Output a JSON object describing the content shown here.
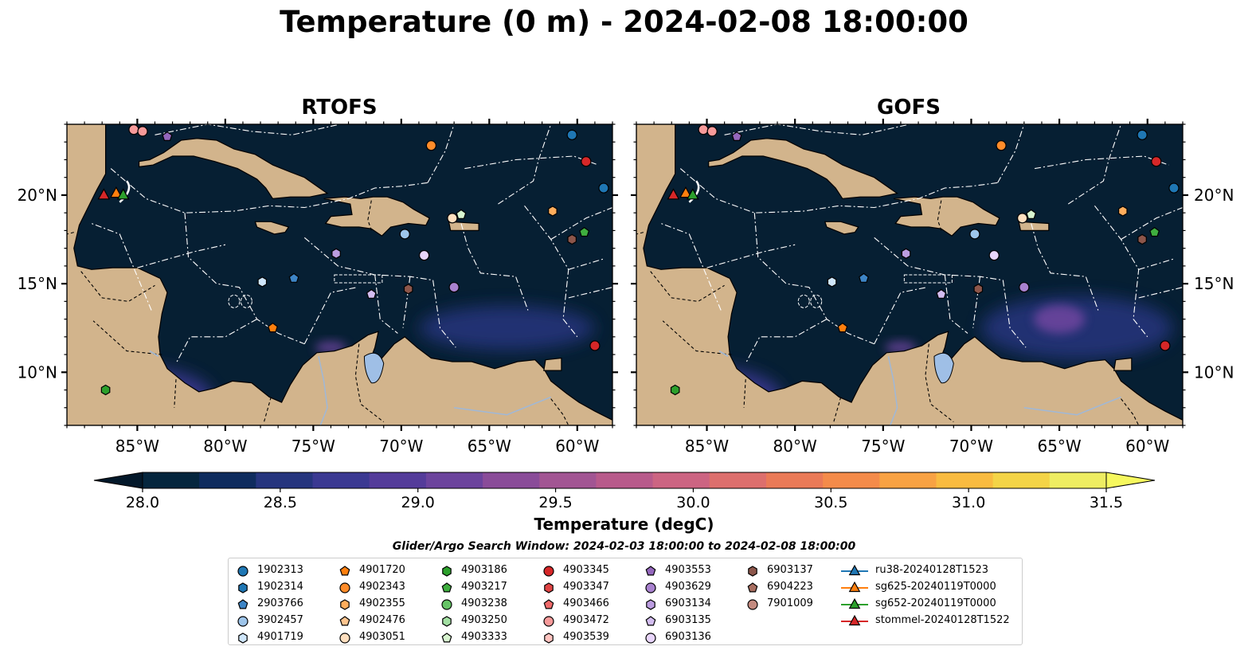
{
  "title": "Temperature (0 m) - 2024-02-08 18:00:00",
  "panels": [
    {
      "title": "RTOFS",
      "hotspot": "low"
    },
    {
      "title": "GOFS",
      "hotspot": "high"
    }
  ],
  "map": {
    "lon_range": [
      -89,
      -58
    ],
    "lat_range": [
      7,
      24
    ],
    "lon_ticks": [
      {
        "value": -85,
        "label": "85°W"
      },
      {
        "value": -80,
        "label": "80°W"
      },
      {
        "value": -75,
        "label": "75°W"
      },
      {
        "value": -70,
        "label": "70°W"
      },
      {
        "value": -65,
        "label": "65°W"
      },
      {
        "value": -60,
        "label": "60°W"
      }
    ],
    "lat_ticks": [
      {
        "value": 10,
        "label": "10°N"
      },
      {
        "value": 15,
        "label": "15°N"
      },
      {
        "value": 20,
        "label": "20°N"
      }
    ],
    "colors": {
      "ocean": "#061f33",
      "land": "#d2b48c",
      "lake": "#9fbfe6",
      "border": "#000000",
      "eez": "#ffffff"
    }
  },
  "colorbar": {
    "label": "Temperature (degC)",
    "min": 28.0,
    "max": 31.5,
    "ticks": [
      "28.0",
      "28.5",
      "29.0",
      "29.5",
      "30.0",
      "30.5",
      "31.0",
      "31.5"
    ],
    "colors": [
      "#05263e",
      "#0f2c5e",
      "#26357e",
      "#3b3992",
      "#543c9a",
      "#6c449d",
      "#8a4c99",
      "#a25593",
      "#b85a8b",
      "#cc6482",
      "#dd6f6d",
      "#ea7a57",
      "#f48b4a",
      "#f8a243",
      "#f9bb40",
      "#f4d447",
      "#eeed62"
    ],
    "extend_low_color": "#03182a",
    "extend_high_color": "#f6f85e"
  },
  "search_window": "Glider/Argo Search Window: 2024-02-03 18:00:00 to 2024-02-08 18:00:00",
  "legend": [
    {
      "label": "1902313",
      "marker": "circle",
      "color": "#1f77b4"
    },
    {
      "label": "1902314",
      "marker": "hexagon",
      "color": "#1f77b4"
    },
    {
      "label": "2903766",
      "marker": "pentagon",
      "color": "#3d85c6"
    },
    {
      "label": "3902457",
      "marker": "circle",
      "color": "#9ec5ea"
    },
    {
      "label": "4901719",
      "marker": "hexagon",
      "color": "#cfe6fb"
    },
    {
      "label": "4901720",
      "marker": "pentagon",
      "color": "#ff7f0e"
    },
    {
      "label": "4902343",
      "marker": "circle",
      "color": "#ff8c2a"
    },
    {
      "label": "4902355",
      "marker": "hexagon",
      "color": "#ffad5c"
    },
    {
      "label": "4902476",
      "marker": "pentagon",
      "color": "#ffc58f"
    },
    {
      "label": "4903051",
      "marker": "circle",
      "color": "#ffdfbf"
    },
    {
      "label": "4903186",
      "marker": "hexagon",
      "color": "#2ca02c"
    },
    {
      "label": "4903217",
      "marker": "pentagon",
      "color": "#3fae3f"
    },
    {
      "label": "4903238",
      "marker": "circle",
      "color": "#66c466"
    },
    {
      "label": "4903250",
      "marker": "hexagon",
      "color": "#a3e0a3"
    },
    {
      "label": "4903333",
      "marker": "pentagon",
      "color": "#d8f5d0"
    },
    {
      "label": "4903345",
      "marker": "circle",
      "color": "#d62728"
    },
    {
      "label": "4903347",
      "marker": "hexagon",
      "color": "#e04444"
    },
    {
      "label": "4903466",
      "marker": "pentagon",
      "color": "#ee6a6a"
    },
    {
      "label": "4903472",
      "marker": "circle",
      "color": "#f79a9a"
    },
    {
      "label": "4903539",
      "marker": "hexagon",
      "color": "#ffc4c0"
    },
    {
      "label": "4903553",
      "marker": "pentagon",
      "color": "#9467bd"
    },
    {
      "label": "4903629",
      "marker": "circle",
      "color": "#a982cf"
    },
    {
      "label": "6903134",
      "marker": "hexagon",
      "color": "#bb9ce0"
    },
    {
      "label": "6903135",
      "marker": "pentagon",
      "color": "#d3bdf0"
    },
    {
      "label": "6903136",
      "marker": "circle",
      "color": "#e8d5fb"
    },
    {
      "label": "6903137",
      "marker": "hexagon",
      "color": "#8c564b"
    },
    {
      "label": "6904223",
      "marker": "pentagon",
      "color": "#a86e60"
    },
    {
      "label": "7901009",
      "marker": "circle",
      "color": "#c48b80"
    },
    {
      "label": "ru38-20240128T1523",
      "marker": "triangle-line",
      "color": "#1f77b4"
    },
    {
      "label": "sg625-20240119T0000",
      "marker": "triangle-line",
      "color": "#ff7f0e"
    },
    {
      "label": "sg652-20240119T0000",
      "marker": "triangle-line",
      "color": "#2ca02c"
    },
    {
      "label": "stommel-20240128T1522",
      "marker": "triangle-line",
      "color": "#d62728"
    }
  ],
  "floats": [
    {
      "id": "1902313",
      "lon": -60.3,
      "lat": 23.4
    },
    {
      "id": "1902313",
      "lon": -58.5,
      "lat": 20.4
    },
    {
      "id": "4903345",
      "lon": -59.5,
      "lat": 21.9
    },
    {
      "id": "4902343",
      "lon": -68.3,
      "lat": 22.8
    },
    {
      "id": "4903472",
      "lon": -85.2,
      "lat": 23.7
    },
    {
      "id": "4903472",
      "lon": -84.7,
      "lat": 23.6
    },
    {
      "id": "4903553",
      "lon": -83.3,
      "lat": 23.3
    },
    {
      "id": "4903051",
      "lon": -67.1,
      "lat": 18.7
    },
    {
      "id": "4903333",
      "lon": -66.6,
      "lat": 18.9
    },
    {
      "id": "3902457",
      "lon": -69.8,
      "lat": 17.8
    },
    {
      "id": "6903136",
      "lon": -68.7,
      "lat": 16.6
    },
    {
      "id": "4902355",
      "lon": -61.4,
      "lat": 19.1
    },
    {
      "id": "4903217",
      "lon": -59.6,
      "lat": 17.9
    },
    {
      "id": "6903137",
      "lon": -60.3,
      "lat": 17.5
    },
    {
      "id": "6903134",
      "lon": -73.7,
      "lat": 16.7
    },
    {
      "id": "2903766",
      "lon": -76.1,
      "lat": 15.3
    },
    {
      "id": "4901719",
      "lon": -77.9,
      "lat": 15.1
    },
    {
      "id": "6903137",
      "lon": -69.6,
      "lat": 14.7
    },
    {
      "id": "4903629",
      "lon": -67.0,
      "lat": 14.8
    },
    {
      "id": "6903135",
      "lon": -71.7,
      "lat": 14.4
    },
    {
      "id": "4901720",
      "lon": -77.3,
      "lat": 12.5
    },
    {
      "id": "4903345",
      "lon": -59.0,
      "lat": 11.5
    },
    {
      "id": "4903186",
      "lon": -86.8,
      "lat": 9.0
    }
  ],
  "gliders": [
    {
      "id": "stommel-20240128T1522",
      "lon": -86.9,
      "lat": 20.0
    },
    {
      "id": "sg625-20240119T0000",
      "lon": -86.2,
      "lat": 20.1
    },
    {
      "id": "sg652-20240119T0000",
      "lon": -85.8,
      "lat": 20.0
    }
  ]
}
